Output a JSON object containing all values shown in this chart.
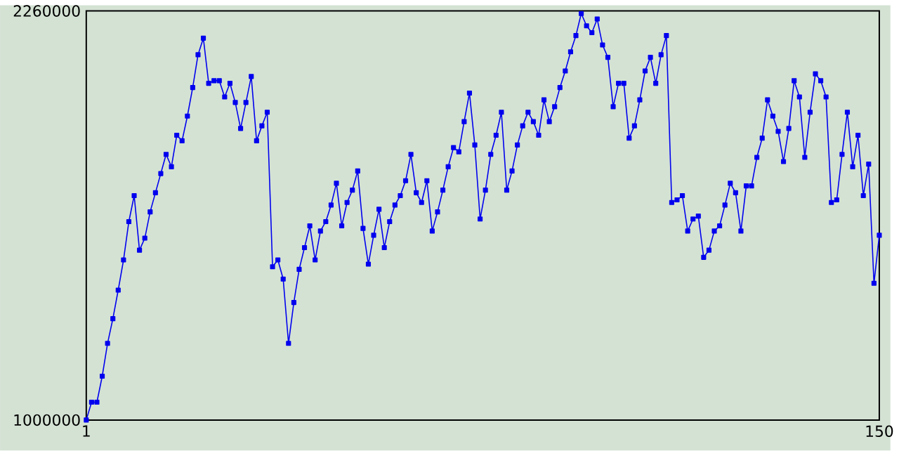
{
  "chart_data": {
    "type": "line",
    "color": "#0000ee",
    "marker": "square",
    "line_style": "solid",
    "x": [
      1,
      2,
      3,
      4,
      5,
      6,
      7,
      8,
      9,
      10,
      11,
      12,
      13,
      14,
      15,
      16,
      17,
      18,
      19,
      20,
      21,
      22,
      23,
      24,
      25,
      26,
      27,
      28,
      29,
      30,
      31,
      32,
      33,
      34,
      35,
      36,
      37,
      38,
      39,
      40,
      41,
      42,
      43,
      44,
      45,
      46,
      47,
      48,
      49,
      50,
      51,
      52,
      53,
      54,
      55,
      56,
      57,
      58,
      59,
      60,
      61,
      62,
      63,
      64,
      65,
      66,
      67,
      68,
      69,
      70,
      71,
      72,
      73,
      74,
      75,
      76,
      77,
      78,
      79,
      80,
      81,
      82,
      83,
      84,
      85,
      86,
      87,
      88,
      89,
      90,
      91,
      92,
      93,
      94,
      95,
      96,
      97,
      98,
      99,
      100,
      101,
      102,
      103,
      104,
      105,
      106,
      107,
      108,
      109,
      110,
      111,
      112,
      113,
      114,
      115,
      116,
      117,
      118,
      119,
      120,
      121,
      122,
      123,
      124,
      125,
      126,
      127,
      128,
      129,
      130,
      131,
      132,
      133,
      134,
      135,
      136,
      137,
      138,
      139,
      140,
      141,
      142,
      143,
      144,
      145,
      146,
      147,
      148,
      149,
      150
    ],
    "values": [
      1000000,
      1055000,
      1055000,
      1135000,
      1236000,
      1312000,
      1400000,
      1493000,
      1611000,
      1691000,
      1523000,
      1560000,
      1641000,
      1700000,
      1759000,
      1818000,
      1780000,
      1877000,
      1860000,
      1936000,
      2024000,
      2125000,
      2176000,
      2037000,
      2045000,
      2045000,
      1995000,
      2037000,
      1978000,
      1898000,
      1978000,
      2058000,
      1860000,
      1906000,
      1948000,
      1472000,
      1493000,
      1434000,
      1236000,
      1362000,
      1464000,
      1531000,
      1598000,
      1493000,
      1582000,
      1611000,
      1662000,
      1729000,
      1598000,
      1670000,
      1708000,
      1767000,
      1590000,
      1480000,
      1569000,
      1649000,
      1531000,
      1611000,
      1662000,
      1691000,
      1737000,
      1818000,
      1700000,
      1670000,
      1737000,
      1582000,
      1641000,
      1708000,
      1780000,
      1839000,
      1826000,
      1919000,
      2007000,
      1847000,
      1619000,
      1708000,
      1818000,
      1877000,
      1948000,
      1708000,
      1767000,
      1847000,
      1906000,
      1948000,
      1919000,
      1877000,
      1986000,
      1919000,
      1965000,
      2024000,
      2075000,
      2134000,
      2184000,
      2252000,
      2214000,
      2193000,
      2235000,
      2155000,
      2117000,
      1965000,
      2037000,
      2037000,
      1868000,
      1906000,
      1986000,
      2075000,
      2117000,
      2037000,
      2125000,
      2184000,
      1670000,
      1678000,
      1691000,
      1582000,
      1619000,
      1628000,
      1501000,
      1523000,
      1582000,
      1598000,
      1662000,
      1729000,
      1700000,
      1582000,
      1721000,
      1721000,
      1809000,
      1868000,
      1986000,
      1936000,
      1889000,
      1796000,
      1898000,
      2045000,
      1995000,
      1809000,
      1948000,
      2066000,
      2045000,
      1995000,
      1670000,
      1678000,
      1818000,
      1948000,
      1780000,
      1877000,
      1691000,
      1788000,
      1421000,
      1569000
    ],
    "xlim": [
      1,
      150
    ],
    "ylim": [
      1000000,
      2260000
    ],
    "xticks": [
      1,
      150
    ],
    "yticks": [
      1000000,
      2260000
    ]
  }
}
